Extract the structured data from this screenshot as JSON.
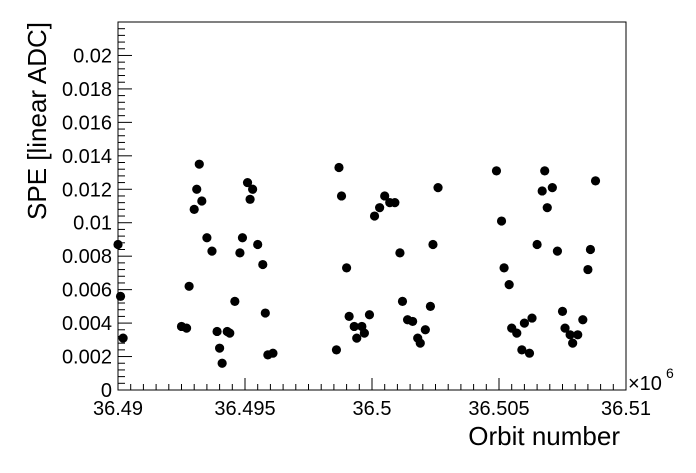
{
  "chart_data": {
    "type": "scatter",
    "xlabel": "Orbit number",
    "ylabel": "SPE [linear ADC]",
    "x_exponent_label": "×10",
    "x_exponent_power": "6",
    "xlim": [
      36.49,
      36.51
    ],
    "ylim": [
      0,
      0.022
    ],
    "x_ticks": [
      "36.49",
      "36.495",
      "36.5",
      "36.505",
      "36.51"
    ],
    "y_ticks": [
      "0",
      "0.002",
      "0.004",
      "0.006",
      "0.008",
      "0.01",
      "0.012",
      "0.014",
      "0.016",
      "0.018",
      "0.02"
    ],
    "grid": false,
    "legend": "none",
    "marker_color": "#000000",
    "points": [
      [
        36.49,
        0.0087
      ],
      [
        36.4901,
        0.0056
      ],
      [
        36.4902,
        0.0031
      ],
      [
        36.4925,
        0.0038
      ],
      [
        36.4927,
        0.0037
      ],
      [
        36.4928,
        0.0062
      ],
      [
        36.493,
        0.0108
      ],
      [
        36.4931,
        0.012
      ],
      [
        36.4932,
        0.0135
      ],
      [
        36.4933,
        0.0113
      ],
      [
        36.4935,
        0.0091
      ],
      [
        36.4937,
        0.0083
      ],
      [
        36.4939,
        0.0035
      ],
      [
        36.494,
        0.0025
      ],
      [
        36.4941,
        0.0016
      ],
      [
        36.4943,
        0.0035
      ],
      [
        36.4944,
        0.0034
      ],
      [
        36.4946,
        0.0053
      ],
      [
        36.4948,
        0.0082
      ],
      [
        36.4949,
        0.0091
      ],
      [
        36.4951,
        0.0124
      ],
      [
        36.4952,
        0.0114
      ],
      [
        36.4953,
        0.012
      ],
      [
        36.4955,
        0.0087
      ],
      [
        36.4957,
        0.0075
      ],
      [
        36.4958,
        0.0046
      ],
      [
        36.4959,
        0.0021
      ],
      [
        36.4961,
        0.0022
      ],
      [
        36.4986,
        0.0024
      ],
      [
        36.4987,
        0.0133
      ],
      [
        36.4988,
        0.0116
      ],
      [
        36.499,
        0.0073
      ],
      [
        36.4991,
        0.0044
      ],
      [
        36.4993,
        0.0038
      ],
      [
        36.4994,
        0.0031
      ],
      [
        36.4996,
        0.0038
      ],
      [
        36.4997,
        0.0034
      ],
      [
        36.4999,
        0.0045
      ],
      [
        36.5001,
        0.0104
      ],
      [
        36.5003,
        0.0109
      ],
      [
        36.5005,
        0.0116
      ],
      [
        36.5007,
        0.0112
      ],
      [
        36.5009,
        0.0112
      ],
      [
        36.5011,
        0.0082
      ],
      [
        36.5012,
        0.0053
      ],
      [
        36.5014,
        0.0042
      ],
      [
        36.5016,
        0.0041
      ],
      [
        36.5018,
        0.0031
      ],
      [
        36.5019,
        0.0028
      ],
      [
        36.5021,
        0.0036
      ],
      [
        36.5023,
        0.005
      ],
      [
        36.5024,
        0.0087
      ],
      [
        36.5026,
        0.0121
      ],
      [
        36.5049,
        0.0131
      ],
      [
        36.5051,
        0.0101
      ],
      [
        36.5052,
        0.0073
      ],
      [
        36.5054,
        0.0063
      ],
      [
        36.5055,
        0.0037
      ],
      [
        36.5057,
        0.0034
      ],
      [
        36.5059,
        0.0024
      ],
      [
        36.506,
        0.004
      ],
      [
        36.5062,
        0.0022
      ],
      [
        36.5063,
        0.0043
      ],
      [
        36.5065,
        0.0087
      ],
      [
        36.5067,
        0.0119
      ],
      [
        36.5068,
        0.0131
      ],
      [
        36.5069,
        0.0109
      ],
      [
        36.5071,
        0.0121
      ],
      [
        36.5073,
        0.0083
      ],
      [
        36.5075,
        0.0047
      ],
      [
        36.5076,
        0.0037
      ],
      [
        36.5078,
        0.0033
      ],
      [
        36.5079,
        0.0028
      ],
      [
        36.5081,
        0.0033
      ],
      [
        36.5083,
        0.0042
      ],
      [
        36.5085,
        0.0072
      ],
      [
        36.5086,
        0.0084
      ],
      [
        36.5088,
        0.0125
      ]
    ]
  }
}
